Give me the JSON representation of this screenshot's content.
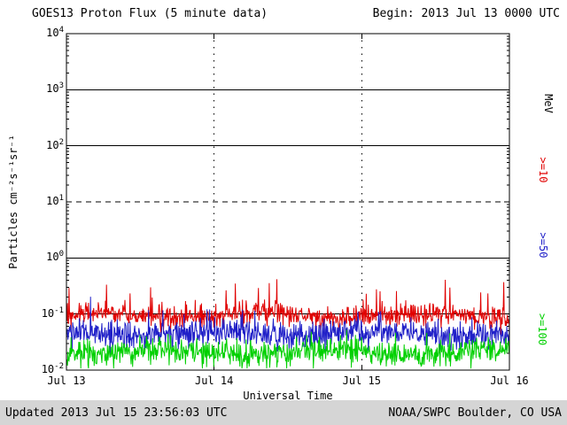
{
  "header": {
    "title": "GOES13 Proton Flux (5 minute data)",
    "begin_label": "Begin: 2013 Jul 13 0000 UTC"
  },
  "footer": {
    "updated": "Updated 2013 Jul 15 23:56:03 UTC",
    "source": "NOAA/SWPC Boulder, CO USA"
  },
  "chart_data": {
    "type": "line",
    "title": "GOES13 Proton Flux (5 minute data)",
    "xlabel": "Universal Time",
    "ylabel": "Particles cm⁻²s⁻¹sr⁻¹",
    "right_axis_unit": "MeV",
    "x_tick_labels": [
      "Jul 13",
      "Jul 14",
      "Jul 15",
      "Jul 16"
    ],
    "x_days": 3,
    "points_per_day": 288,
    "ylim_log10": [
      -2,
      4
    ],
    "y_tick_exponents": [
      4,
      3,
      2,
      1,
      0,
      -1,
      -2
    ],
    "solid_hgrid_log10": [
      3,
      2,
      0,
      -1
    ],
    "dashed_hgrid_log10": [
      1
    ],
    "vertical_grid_days": [
      1,
      2
    ],
    "grid_on": true,
    "legend_position": "right-axis-rotated",
    "noise_seed": 20130715,
    "series": [
      {
        "name": ">=10",
        "color": "#e00000",
        "baseline_flux": 0.095,
        "approx_range": [
          0.06,
          0.45
        ],
        "noise_sigma_log10": 0.1,
        "spike_prob": 0.05,
        "spike_amp_log10": 0.55
      },
      {
        "name": ">=50",
        "color": "#2020c8",
        "baseline_flux": 0.045,
        "approx_range": [
          0.025,
          0.1
        ],
        "noise_sigma_log10": 0.13,
        "spike_prob": 0.03,
        "spike_amp_log10": 0.3
      },
      {
        "name": ">=100",
        "color": "#00d000",
        "baseline_flux": 0.021,
        "approx_range": [
          0.012,
          0.04
        ],
        "noise_sigma_log10": 0.12,
        "spike_prob": 0.02,
        "spike_amp_log10": 0.25
      }
    ]
  }
}
